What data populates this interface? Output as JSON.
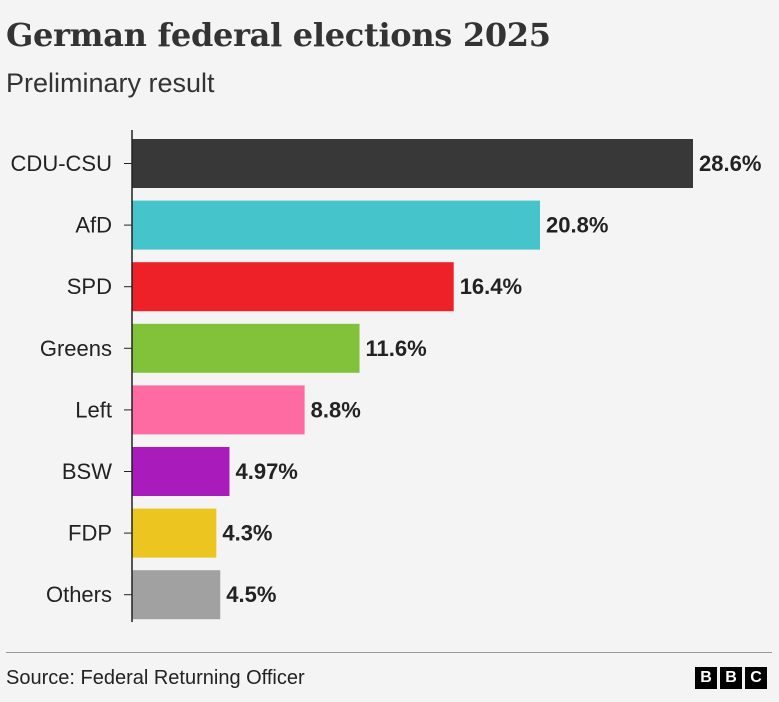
{
  "header": {
    "title": "German federal elections 2025",
    "subtitle": "Preliminary result"
  },
  "chart_data": {
    "type": "bar",
    "orientation": "horizontal",
    "title": "German federal elections 2025",
    "subtitle": "Preliminary result",
    "categories": [
      "CDU-CSU",
      "AfD",
      "SPD",
      "Greens",
      "Left",
      "BSW",
      "FDP",
      "Others"
    ],
    "values": [
      28.6,
      20.8,
      16.4,
      11.6,
      8.8,
      4.97,
      4.3,
      4.5
    ],
    "value_labels": [
      "28.6%",
      "20.8%",
      "16.4%",
      "11.6%",
      "8.8%",
      "4.97%",
      "4.3%",
      "4.5%"
    ],
    "colors": [
      "#383838",
      "#46c4cc",
      "#ee2028",
      "#82c13a",
      "#fd6ba2",
      "#a91bbb",
      "#ecc521",
      "#a1a1a1"
    ],
    "xlim": [
      0,
      28.6
    ],
    "grid": false,
    "legend": "none"
  },
  "footer": {
    "source": "Source: Federal Returning Officer",
    "logo_letters": [
      "B",
      "B",
      "C"
    ]
  }
}
